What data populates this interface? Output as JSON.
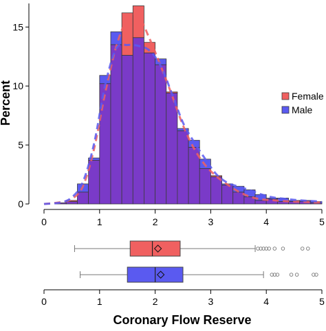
{
  "chart_data": [
    {
      "type": "bar",
      "subtype": "overlaid-histogram-with-density",
      "title": "",
      "xlabel": "",
      "ylabel": "Percent",
      "xlim": [
        0,
        5
      ],
      "ylim": [
        0,
        17
      ],
      "xticks": [
        "0",
        "1",
        "2",
        "3",
        "4",
        "5"
      ],
      "yticks": [
        "0",
        "5",
        "10",
        "15"
      ],
      "bin_edges": [
        0.2,
        0.4,
        0.6,
        0.8,
        1.0,
        1.2,
        1.4,
        1.6,
        1.8,
        2.0,
        2.2,
        2.4,
        2.6,
        2.8,
        3.0,
        3.2,
        3.4,
        3.6,
        3.8,
        4.0,
        4.2,
        4.4,
        4.6,
        4.8,
        5.0
      ],
      "series": [
        {
          "name": "Female",
          "color": "#f06060",
          "values": [
            0.1,
            0.3,
            1.0,
            3.7,
            10.2,
            13.5,
            16.2,
            16.8,
            13.7,
            11.8,
            9.5,
            6.2,
            4.8,
            3.0,
            2.4,
            1.6,
            1.0,
            0.6,
            0.3,
            0.4,
            0.2,
            0.2,
            0.2,
            0.1
          ],
          "density_color": "#f06060"
        },
        {
          "name": "Male",
          "color": "#5a5af0",
          "values": [
            0.1,
            0.2,
            1.7,
            3.9,
            10.9,
            14.6,
            12.6,
            14.1,
            12.8,
            12.3,
            9.4,
            6.4,
            5.4,
            3.8,
            2.3,
            1.7,
            1.5,
            1.2,
            0.8,
            0.5,
            0.5,
            0.3,
            0.3,
            0.2
          ],
          "density_color": "#5a5af0"
        }
      ],
      "overlap_color": "#7a3ac8",
      "legend": {
        "position": "right",
        "entries": [
          "Female",
          "Male"
        ]
      },
      "grid": false
    },
    {
      "type": "boxplot",
      "xlabel": "Coronary Flow Reserve",
      "xlim": [
        0,
        5
      ],
      "xticks": [
        "0",
        "1",
        "2",
        "3",
        "4",
        "5"
      ],
      "series": [
        {
          "name": "Female",
          "color": "#f06060",
          "whisker_low": 0.55,
          "q1": 1.55,
          "median": 1.95,
          "mean": 2.05,
          "q3": 2.45,
          "whisker_high": 3.8,
          "outliers": [
            3.85,
            3.9,
            3.95,
            4.0,
            4.05,
            4.15,
            4.3,
            4.65,
            4.75
          ]
        },
        {
          "name": "Male",
          "color": "#5a5af0",
          "whisker_low": 0.65,
          "q1": 1.5,
          "median": 2.0,
          "mean": 2.1,
          "q3": 2.5,
          "whisker_high": 3.95,
          "outliers": [
            4.1,
            4.15,
            4.2,
            4.45,
            4.55,
            4.85,
            4.9
          ]
        }
      ]
    }
  ]
}
